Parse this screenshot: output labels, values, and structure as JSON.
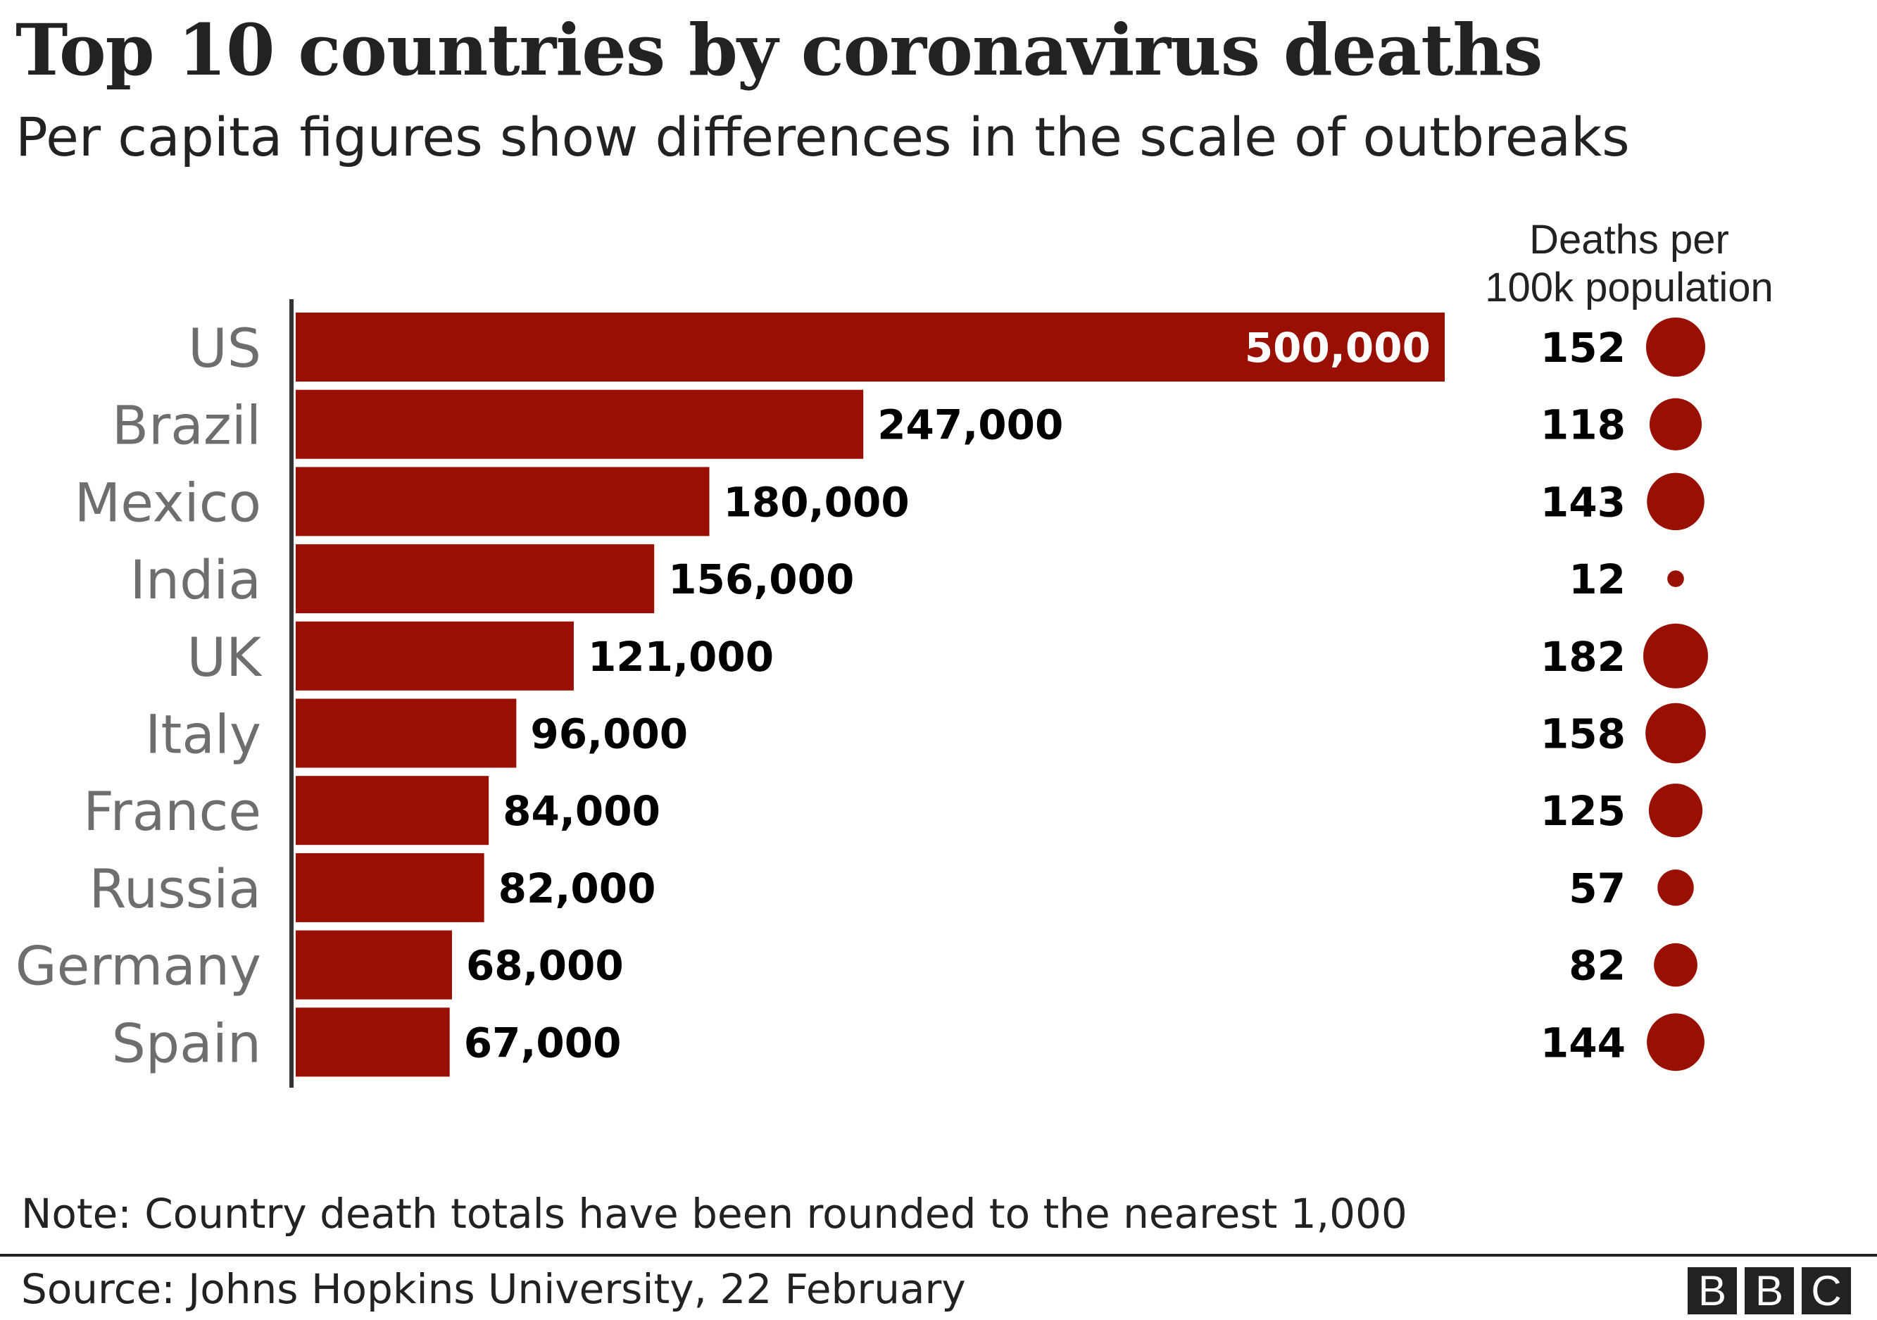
{
  "title": "Top 10 countries by coronavirus deaths",
  "subtitle": "Per capita figures show differences in the scale of outbreaks",
  "note": "Note: Country death totals have been rounded to the nearest 1,000",
  "source": "Source: Johns Hopkins University, 22 February",
  "logo": "BBC",
  "colors": {
    "bar": "#990f02",
    "country_label": "#6e6e6e",
    "text": "#222222"
  },
  "chart_data": {
    "type": "bar",
    "orientation": "horizontal",
    "categories": [
      "US",
      "Brazil",
      "Mexico",
      "India",
      "UK",
      "Italy",
      "France",
      "Russia",
      "Germany",
      "Spain"
    ],
    "series": [
      {
        "values": [
          500000,
          247000,
          180000,
          156000,
          121000,
          96000,
          84000,
          82000,
          68000,
          67000
        ],
        "labels": [
          "500,000",
          "247,000",
          "180,000",
          "156,000",
          "121,000",
          "96,000",
          "84,000",
          "82,000",
          "68,000",
          "67,000"
        ]
      }
    ],
    "per_capita": {
      "header_line1": "Deaths per",
      "header_line2": "100k population",
      "type": "bubble",
      "values": [
        152,
        118,
        143,
        12,
        182,
        158,
        125,
        57,
        82,
        144
      ]
    },
    "xlim": [
      0,
      500000
    ],
    "grid": false
  }
}
